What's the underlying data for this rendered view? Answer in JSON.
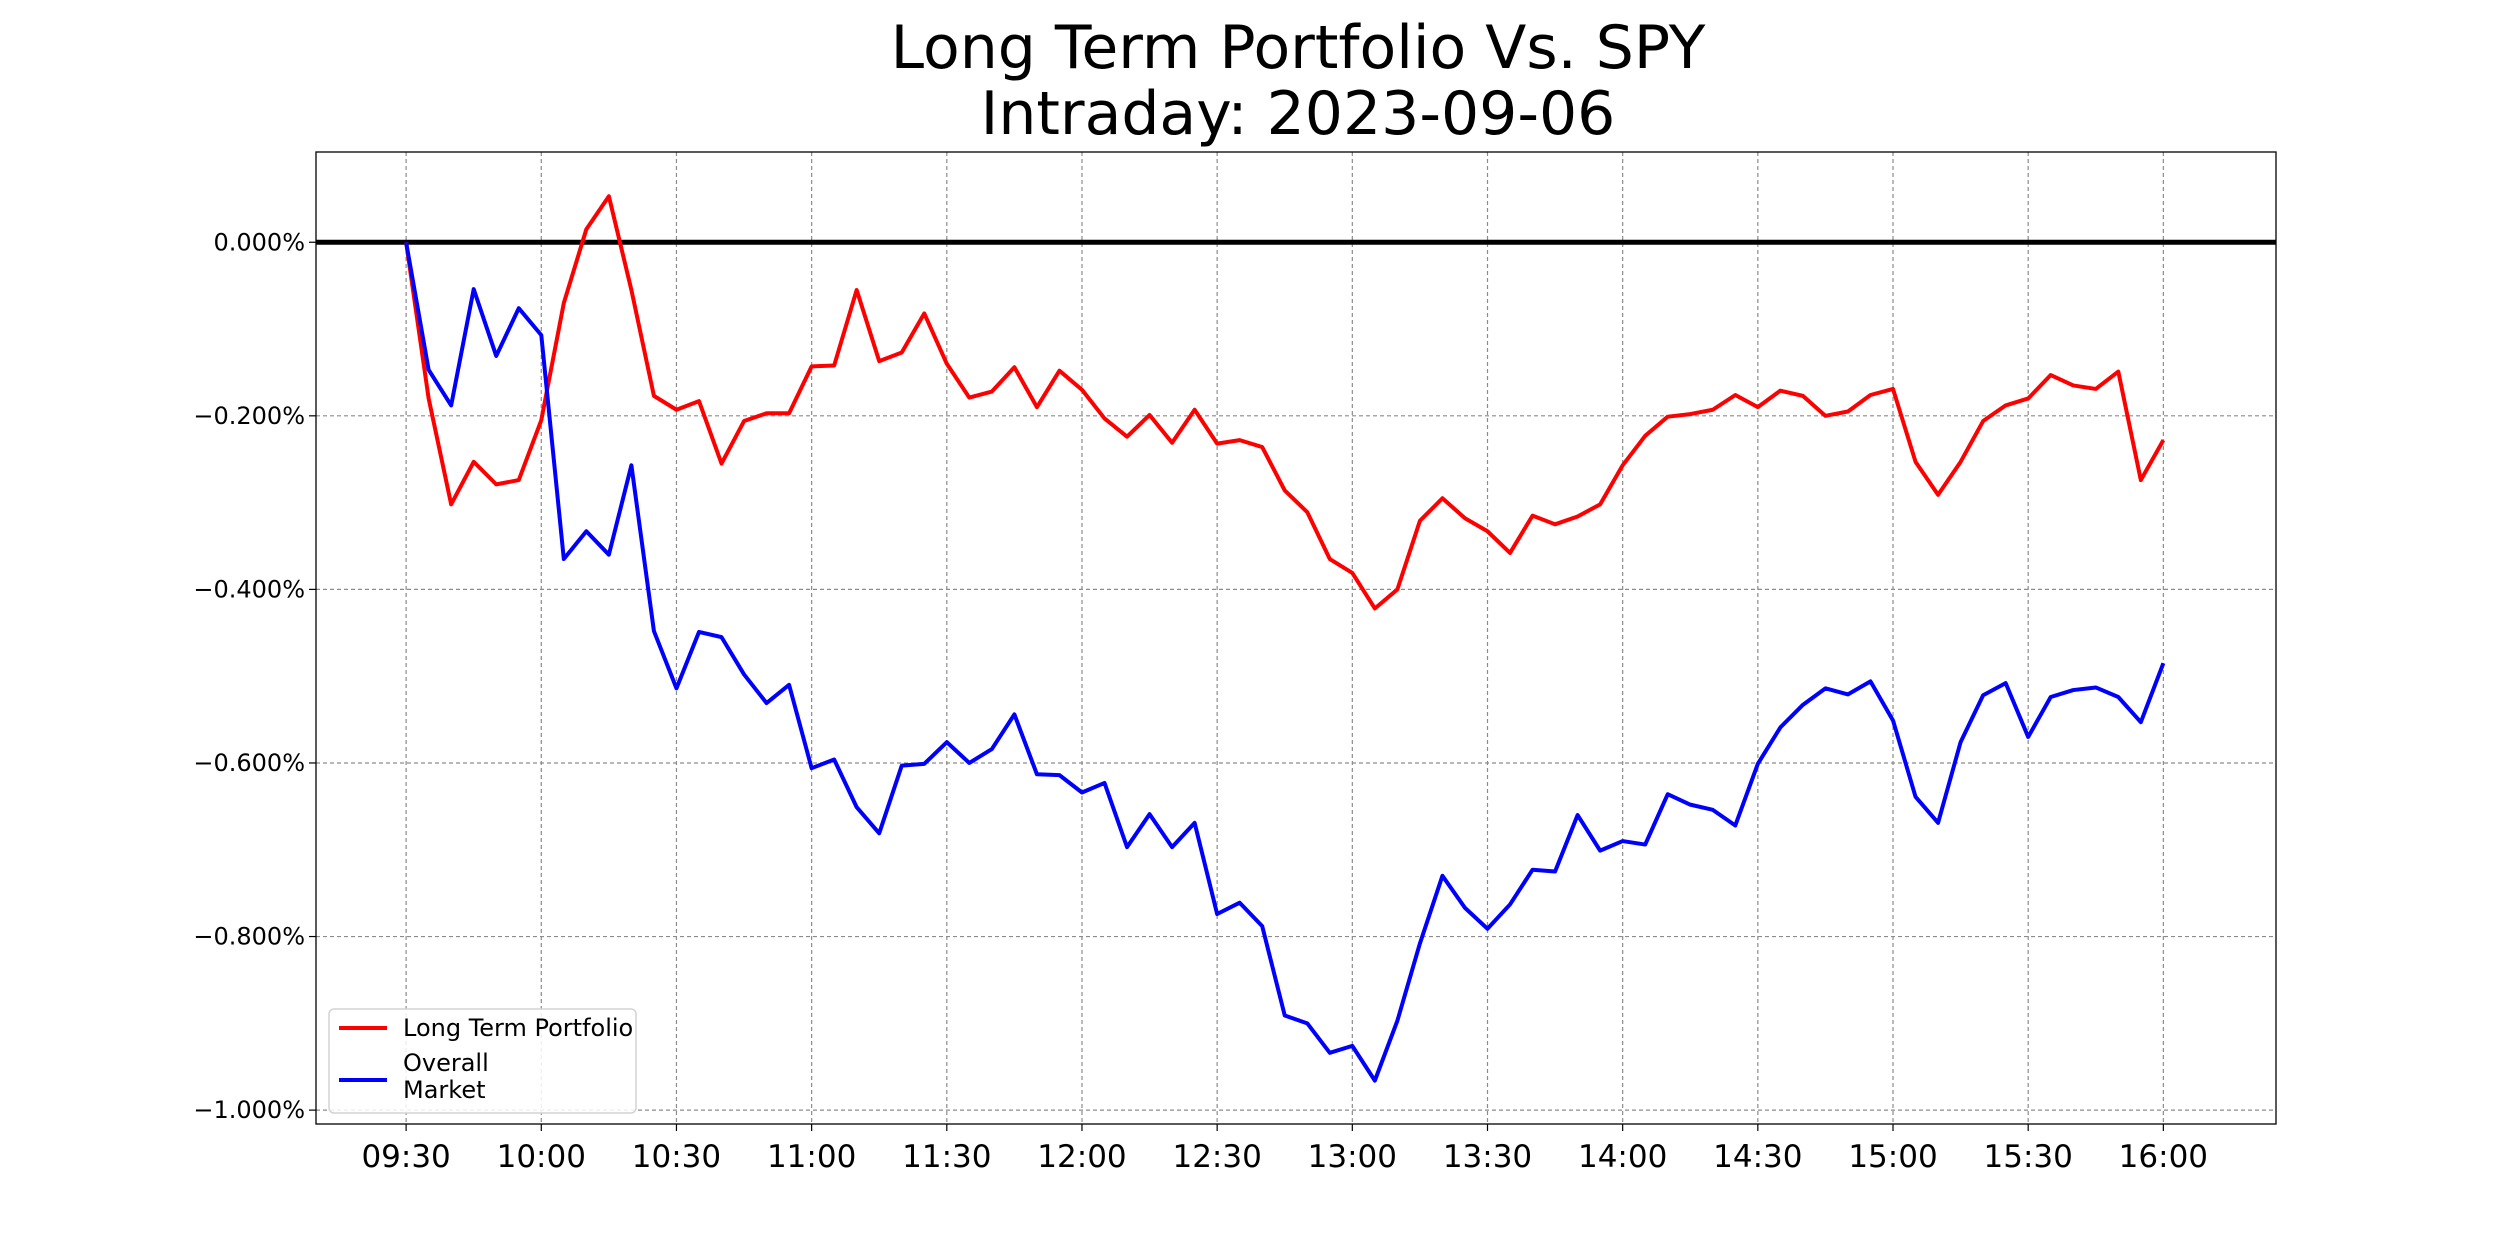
{
  "chart_data": {
    "type": "line",
    "title": "Long Term Portfolio Vs. SPY",
    "subtitle": "Intraday: 2023-09-06",
    "xlabel": "",
    "ylabel": "",
    "grid": true,
    "legend_position": "lower-left",
    "x_interval_minutes": 5,
    "x_start": "09:30",
    "x_end": "16:00",
    "x_range_minutes": [
      -20,
      415
    ],
    "ylim": [
      -1.016,
      0.104
    ],
    "xtick_labels": [
      "09:30",
      "10:00",
      "10:30",
      "11:00",
      "11:30",
      "12:00",
      "12:30",
      "13:00",
      "13:30",
      "14:00",
      "14:30",
      "15:00",
      "15:30",
      "16:00"
    ],
    "ytick_values": [
      0.0,
      -0.2,
      -0.4,
      -0.6,
      -0.8,
      -1.0
    ],
    "ytick_labels": [
      "0.000%",
      "−0.200%",
      "−0.400%",
      "−0.600%",
      "−0.800%",
      "−1.000%"
    ],
    "zero_line": {
      "value": 0.0,
      "color": "#000000"
    },
    "series": [
      {
        "name": "Long Term Portfolio",
        "color": "#ff0000",
        "values": [
          0.0,
          -0.18,
          -0.302,
          -0.253,
          -0.279,
          -0.274,
          -0.205,
          -0.07,
          0.015,
          0.053,
          -0.055,
          -0.177,
          -0.193,
          -0.183,
          -0.255,
          -0.206,
          -0.197,
          -0.197,
          -0.143,
          -0.142,
          -0.055,
          -0.137,
          -0.127,
          -0.082,
          -0.14,
          -0.179,
          -0.172,
          -0.144,
          -0.19,
          -0.148,
          -0.17,
          -0.203,
          -0.224,
          -0.199,
          -0.231,
          -0.193,
          -0.232,
          -0.228,
          -0.236,
          -0.286,
          -0.311,
          -0.365,
          -0.381,
          -0.422,
          -0.4,
          -0.321,
          -0.295,
          -0.318,
          -0.333,
          -0.358,
          -0.315,
          -0.325,
          -0.316,
          -0.302,
          -0.257,
          -0.223,
          -0.201,
          -0.198,
          -0.193,
          -0.176,
          -0.19,
          -0.171,
          -0.177,
          -0.2,
          -0.195,
          -0.176,
          -0.169,
          -0.253,
          -0.291,
          -0.253,
          -0.206,
          -0.188,
          -0.18,
          -0.153,
          -0.165,
          -0.169,
          -0.149,
          -0.274,
          -0.228
        ]
      },
      {
        "name": "Overall\nMarket",
        "legend_lines": [
          "Overall",
          "Market"
        ],
        "color": "#0000ff",
        "values": [
          0.0,
          -0.147,
          -0.188,
          -0.054,
          -0.131,
          -0.076,
          -0.107,
          -0.365,
          -0.333,
          -0.36,
          -0.257,
          -0.448,
          -0.514,
          -0.449,
          -0.455,
          -0.498,
          -0.531,
          -0.51,
          -0.606,
          -0.596,
          -0.651,
          -0.681,
          -0.603,
          -0.601,
          -0.576,
          -0.6,
          -0.584,
          -0.544,
          -0.613,
          -0.614,
          -0.634,
          -0.623,
          -0.697,
          -0.659,
          -0.697,
          -0.669,
          -0.774,
          -0.761,
          -0.788,
          -0.891,
          -0.9,
          -0.934,
          -0.926,
          -0.966,
          -0.897,
          -0.808,
          -0.73,
          -0.767,
          -0.791,
          -0.763,
          -0.723,
          -0.725,
          -0.66,
          -0.701,
          -0.69,
          -0.694,
          -0.636,
          -0.648,
          -0.654,
          -0.672,
          -0.601,
          -0.559,
          -0.533,
          -0.514,
          -0.521,
          -0.506,
          -0.551,
          -0.639,
          -0.669,
          -0.576,
          -0.522,
          -0.508,
          -0.57,
          -0.524,
          -0.516,
          -0.513,
          -0.524,
          -0.553,
          -0.485
        ]
      }
    ]
  }
}
